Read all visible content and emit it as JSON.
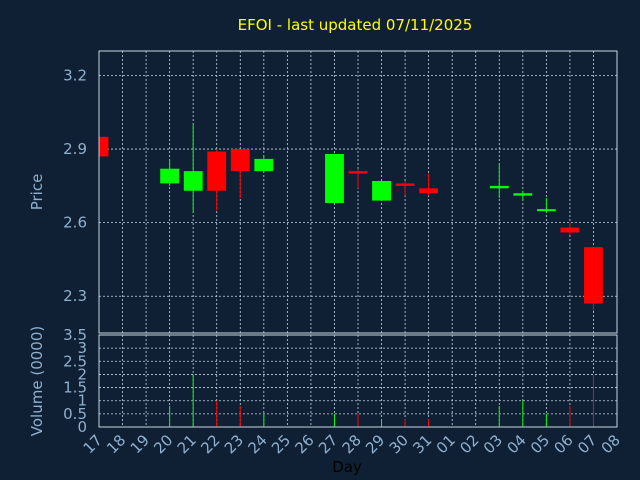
{
  "chart_data": {
    "type": "candlestick",
    "title": "EFOI - last updated 07/11/2025",
    "xlabel": "Day",
    "price_panel": {
      "ylabel": "Price",
      "ylim": [
        2.15,
        3.3
      ],
      "yticks": [
        2.3,
        2.6,
        2.9,
        3.2
      ],
      "ytick_labels": [
        "2.3",
        "2.6",
        "2.9",
        "3.2"
      ],
      "grid": true
    },
    "volume_panel": {
      "ylabel": "Volume (0000)",
      "ylim": [
        0,
        3.5
      ],
      "yticks": [
        0,
        0.5,
        1,
        1.5,
        2,
        2.5,
        3,
        3.5
      ],
      "ytick_labels": [
        "0",
        "0.5",
        "1",
        "1.5",
        "2",
        "2.5",
        "3",
        "3.5"
      ],
      "grid": true
    },
    "x_tick_labels": [
      "17",
      "18",
      "19",
      "20",
      "21",
      "22",
      "23",
      "24",
      "25",
      "26",
      "27",
      "28",
      "29",
      "30",
      "31",
      "01",
      "02",
      "03",
      "04",
      "05",
      "06",
      "07",
      "08"
    ],
    "colors": {
      "up": "#00ff00",
      "down": "#ff0000"
    },
    "candles": [
      {
        "x": 17,
        "open": 2.95,
        "high": 2.95,
        "low": 2.87,
        "close": 2.87,
        "volume": 0.3
      },
      {
        "x": 20,
        "open": 2.76,
        "high": 2.86,
        "low": 2.75,
        "close": 2.82,
        "volume": 0.8
      },
      {
        "x": 21,
        "open": 2.73,
        "high": 3.0,
        "low": 2.64,
        "close": 2.81,
        "volume": 2.0
      },
      {
        "x": 22,
        "open": 2.89,
        "high": 2.9,
        "low": 2.65,
        "close": 2.73,
        "volume": 1.0
      },
      {
        "x": 23,
        "open": 2.9,
        "high": 2.9,
        "low": 2.7,
        "close": 2.81,
        "volume": 0.8
      },
      {
        "x": 24,
        "open": 2.81,
        "high": 2.87,
        "low": 2.81,
        "close": 2.86,
        "volume": 0.5
      },
      {
        "x": 27,
        "open": 2.68,
        "high": 2.88,
        "low": 2.68,
        "close": 2.88,
        "volume": 0.5
      },
      {
        "x": 28,
        "open": 2.81,
        "high": 2.82,
        "low": 2.74,
        "close": 2.8,
        "volume": 0.5
      },
      {
        "x": 29,
        "open": 2.69,
        "high": 2.77,
        "low": 2.69,
        "close": 2.77,
        "volume": 0.3
      },
      {
        "x": 30,
        "open": 2.76,
        "high": 2.77,
        "low": 2.71,
        "close": 2.75,
        "volume": 0.3
      },
      {
        "x": 31,
        "open": 2.74,
        "high": 2.8,
        "low": 2.71,
        "close": 2.72,
        "volume": 0.3
      },
      {
        "x": 34,
        "open": 2.74,
        "high": 2.84,
        "low": 2.7,
        "close": 2.75,
        "volume": 0.8
      },
      {
        "x": 35,
        "open": 2.71,
        "high": 2.73,
        "low": 2.69,
        "close": 2.72,
        "volume": 1.0
      },
      {
        "x": 36,
        "open": 2.65,
        "high": 2.7,
        "low": 2.64,
        "close": 2.655,
        "volume": 0.5
      },
      {
        "x": 37,
        "open": 2.58,
        "high": 2.6,
        "low": 2.55,
        "close": 2.56,
        "volume": 0.8
      },
      {
        "x": 38,
        "open": 2.5,
        "high": 2.5,
        "low": 2.24,
        "close": 2.27,
        "volume": 2.0
      }
    ]
  }
}
